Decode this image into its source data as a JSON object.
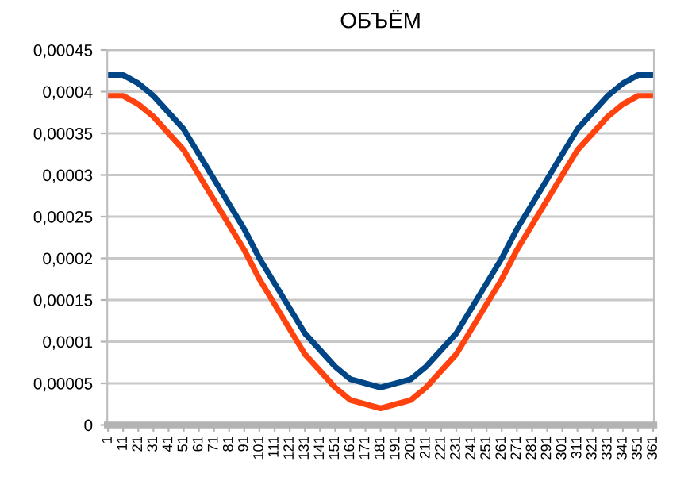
{
  "chart_data": {
    "type": "line",
    "title": "ОБЪЁМ",
    "x": [
      1,
      11,
      21,
      31,
      41,
      51,
      61,
      71,
      81,
      91,
      101,
      111,
      121,
      131,
      141,
      151,
      161,
      171,
      181,
      191,
      201,
      211,
      221,
      231,
      241,
      251,
      261,
      271,
      281,
      291,
      301,
      311,
      321,
      331,
      341,
      351,
      361
    ],
    "series": [
      {
        "color": "#004586",
        "values": [
          0.00042,
          0.00042,
          0.00041,
          0.000395,
          0.000375,
          0.000355,
          0.000325,
          0.000295,
          0.000265,
          0.000235,
          0.0002,
          0.00017,
          0.00014,
          0.00011,
          9e-05,
          7e-05,
          5.5e-05,
          5e-05,
          4.5e-05,
          5e-05,
          5.5e-05,
          7e-05,
          9e-05,
          0.00011,
          0.00014,
          0.00017,
          0.0002,
          0.000235,
          0.000265,
          0.000295,
          0.000325,
          0.000355,
          0.000375,
          0.000395,
          0.00041,
          0.00042,
          0.00042
        ]
      },
      {
        "color": "#ff420e",
        "values": [
          0.000395,
          0.000395,
          0.000385,
          0.00037,
          0.00035,
          0.00033,
          0.0003,
          0.00027,
          0.00024,
          0.00021,
          0.000175,
          0.000145,
          0.000115,
          8.5e-05,
          6.5e-05,
          4.5e-05,
          3e-05,
          2.5e-05,
          2e-05,
          2.5e-05,
          3e-05,
          4.5e-05,
          6.5e-05,
          8.5e-05,
          0.000115,
          0.000145,
          0.000175,
          0.00021,
          0.00024,
          0.00027,
          0.0003,
          0.00033,
          0.00035,
          0.00037,
          0.000385,
          0.000395,
          0.000395
        ]
      }
    ],
    "xlim": [
      0.5,
      361.5
    ],
    "xticks": [
      1,
      11,
      21,
      31,
      41,
      51,
      61,
      71,
      81,
      91,
      101,
      111,
      121,
      131,
      141,
      151,
      161,
      171,
      181,
      191,
      201,
      211,
      221,
      231,
      241,
      251,
      261,
      271,
      281,
      291,
      301,
      311,
      321,
      331,
      341,
      351,
      361
    ],
    "ylim": [
      0,
      0.00045
    ],
    "yticks": [
      {
        "value": 0,
        "label": "0"
      },
      {
        "value": 5e-05,
        "label": "0,00005"
      },
      {
        "value": 0.0001,
        "label": "0,0001"
      },
      {
        "value": 0.00015,
        "label": "0,00015"
      },
      {
        "value": 0.0002,
        "label": "0,0002"
      },
      {
        "value": 0.00025,
        "label": "0,00025"
      },
      {
        "value": 0.0003,
        "label": "0,0003"
      },
      {
        "value": 0.00035,
        "label": "0,00035"
      },
      {
        "value": 0.0004,
        "label": "0,0004"
      },
      {
        "value": 0.00045,
        "label": "0,00045"
      }
    ],
    "grid": "y",
    "marker": "none",
    "line_style": "solid"
  }
}
